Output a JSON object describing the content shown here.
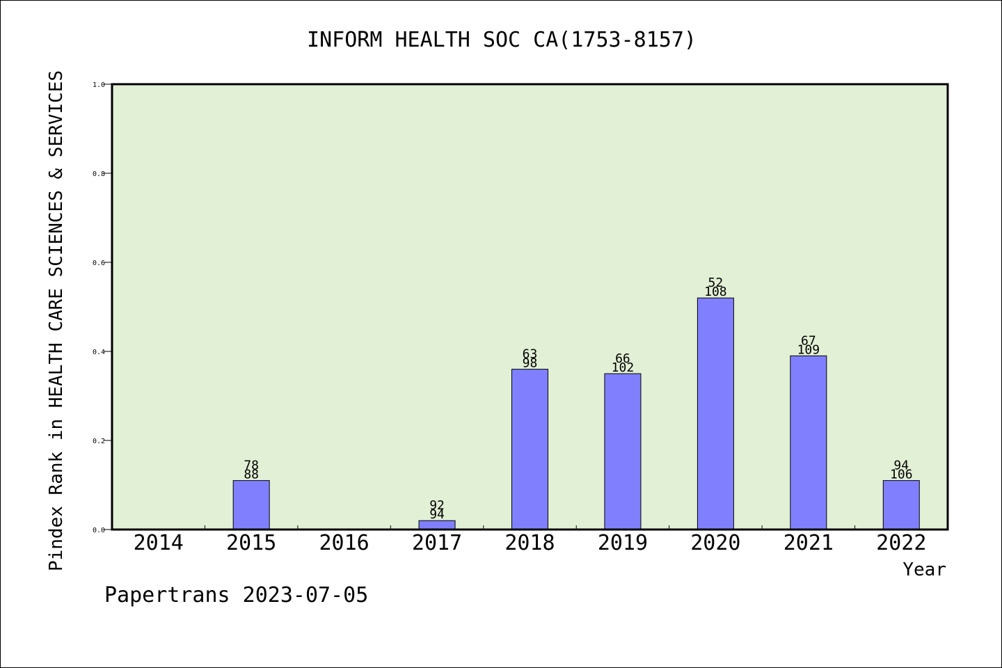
{
  "chart_data": {
    "type": "bar",
    "title": "INFORM HEALTH SOC CA(1753-8157)",
    "xlabel": "Year",
    "ylabel": "Pindex Rank in HEALTH CARE SCIENCES & SERVICES",
    "footer": "Papertrans 2023-07-05",
    "categories": [
      "2014",
      "2015",
      "2016",
      "2017",
      "2018",
      "2019",
      "2020",
      "2021",
      "2022"
    ],
    "values": [
      0,
      0.11,
      0,
      0.02,
      0.36,
      0.35,
      0.52,
      0.39,
      0.11
    ],
    "rank": [
      "",
      "78",
      "",
      "92",
      "63",
      "66",
      "52",
      "67",
      "94"
    ],
    "total": [
      "",
      "88",
      "",
      "94",
      "98",
      "102",
      "108",
      "109",
      "106"
    ],
    "ylim": [
      0,
      1.0
    ],
    "yticks": [
      "0.0",
      "0.2",
      "0.4",
      "0.6",
      "0.8",
      "1.0"
    ],
    "grid": false,
    "colors": {
      "plot_bg": "#e2f0d5",
      "bar": "#8080ff",
      "bar_edge": "#000000"
    }
  }
}
